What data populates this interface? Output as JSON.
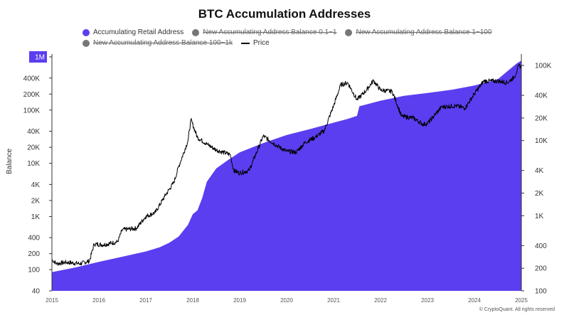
{
  "title": "BTC Accumulation Addresses",
  "legend": {
    "items": [
      {
        "label": "Accumulating Retail Address",
        "color": "#5b3ef0",
        "active": true,
        "kind": "dot"
      },
      {
        "label": "New Accumulating Address Balance 0.1~1",
        "color": "#777777",
        "active": false,
        "kind": "dot"
      },
      {
        "label": "New Accumulating Address Balance 1~100",
        "color": "#777777",
        "active": false,
        "kind": "dot"
      },
      {
        "label": "New Accumulating Address Balance 100~1k",
        "color": "#777777",
        "active": false,
        "kind": "dot"
      },
      {
        "label": "Price",
        "color": "#000000",
        "active": true,
        "kind": "line"
      }
    ]
  },
  "copyright": "© CryptoQuant. All rights reserved",
  "chart_data": {
    "type": "area",
    "ylabel": "Balance",
    "y_left_scale": "log",
    "y_right_scale": "log",
    "left_ticks": [
      "40",
      "100",
      "200",
      "400",
      "1K",
      "2K",
      "4K",
      "10K",
      "20K",
      "40K",
      "100K",
      "200K",
      "400K",
      "1M"
    ],
    "left_tick_values": [
      40,
      100,
      200,
      400,
      1000,
      2000,
      4000,
      10000,
      20000,
      40000,
      100000,
      200000,
      400000,
      1000000
    ],
    "right_ticks": [
      "100",
      "200",
      "400",
      "1K",
      "2K",
      "4K",
      "10K",
      "20K",
      "40K",
      "100K"
    ],
    "right_tick_values": [
      100,
      200,
      400,
      1000,
      2000,
      4000,
      10000,
      20000,
      40000,
      100000
    ],
    "x_ticks": [
      "2015",
      "2016",
      "2017",
      "2018",
      "2019",
      "2020",
      "2021",
      "2022",
      "2023",
      "2024",
      "2025"
    ],
    "xlim": [
      2015.0,
      2025.0
    ],
    "ylim_left": [
      40,
      1000000
    ],
    "ylim_right": [
      100,
      130000
    ],
    "left_highlight_tick": "1M",
    "series": [
      {
        "name": "Accumulating Retail Address",
        "axis": "left",
        "color": "#5b3ef0",
        "style": "area",
        "x": [
          2015.0,
          2015.5,
          2016.0,
          2016.5,
          2017.0,
          2017.3,
          2017.5,
          2017.7,
          2017.9,
          2018.0,
          2018.1,
          2018.2,
          2018.3,
          2018.5,
          2018.75,
          2019.0,
          2019.5,
          2020.0,
          2020.5,
          2021.0,
          2021.3,
          2021.5,
          2021.55,
          2022.0,
          2022.5,
          2023.0,
          2023.5,
          2024.0,
          2024.5,
          2024.9,
          2025.0
        ],
        "y": [
          90,
          110,
          140,
          175,
          220,
          265,
          320,
          420,
          700,
          1100,
          1300,
          2200,
          4500,
          8000,
          11500,
          16000,
          24000,
          34000,
          44000,
          58000,
          68000,
          78000,
          118000,
          150000,
          185000,
          210000,
          240000,
          290000,
          380000,
          750000,
          850000
        ]
      },
      {
        "name": "Price",
        "axis": "right",
        "color": "#000000",
        "style": "line",
        "x": [
          2015.0,
          2015.1,
          2015.3,
          2015.6,
          2015.8,
          2015.9,
          2016.1,
          2016.4,
          2016.5,
          2016.8,
          2017.0,
          2017.2,
          2017.4,
          2017.6,
          2017.7,
          2017.9,
          2017.96,
          2018.1,
          2018.3,
          2018.5,
          2018.8,
          2018.87,
          2019.0,
          2019.2,
          2019.4,
          2019.5,
          2019.8,
          2020.0,
          2020.2,
          2020.4,
          2020.6,
          2020.8,
          2021.0,
          2021.15,
          2021.3,
          2021.5,
          2021.7,
          2021.85,
          2022.0,
          2022.25,
          2022.45,
          2022.7,
          2022.9,
          2023.0,
          2023.3,
          2023.6,
          2023.8,
          2024.0,
          2024.2,
          2024.5,
          2024.7,
          2024.85,
          2024.95,
          2025.0
        ],
        "y": [
          260,
          230,
          240,
          230,
          250,
          420,
          410,
          450,
          650,
          680,
          980,
          1100,
          1800,
          2800,
          4500,
          10000,
          19000,
          11000,
          9000,
          7500,
          6500,
          4000,
          3700,
          4000,
          8000,
          11500,
          8500,
          7200,
          7000,
          9500,
          11000,
          13500,
          29000,
          55000,
          59000,
          35000,
          47000,
          63000,
          47000,
          45000,
          21000,
          20000,
          16500,
          16800,
          28000,
          29000,
          27000,
          42000,
          62000,
          62000,
          59000,
          70000,
          100000,
          95000
        ]
      }
    ]
  }
}
